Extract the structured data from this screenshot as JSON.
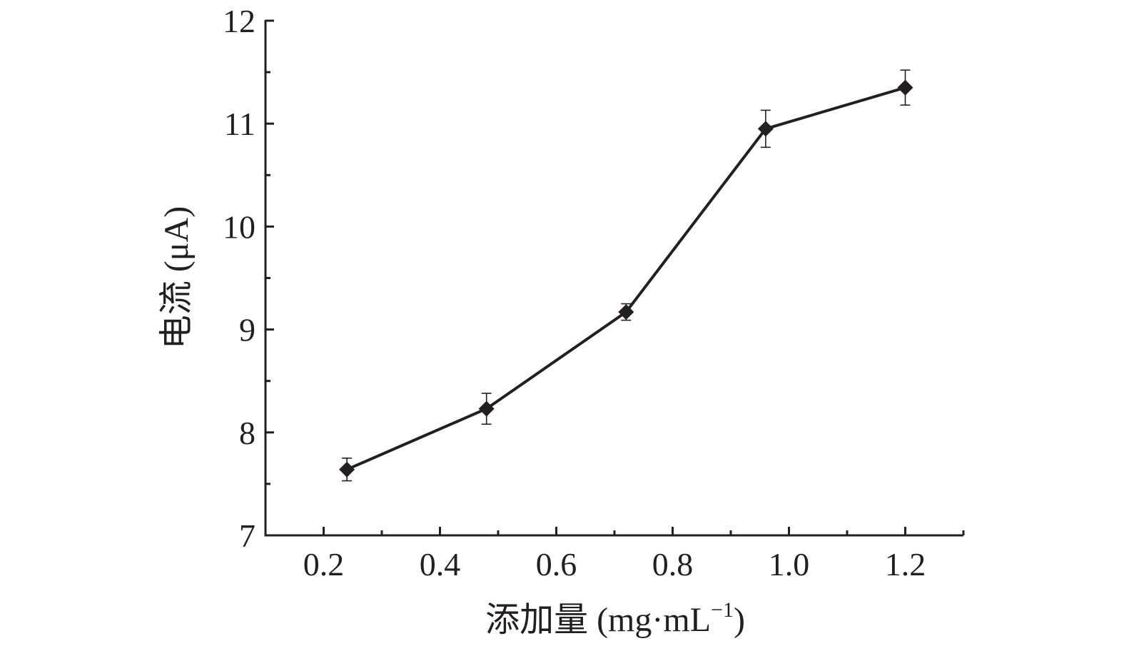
{
  "chart_data": {
    "type": "line",
    "xlabel": {
      "text": "添加量 (mg·mL",
      "superscript": "−1",
      "closing": ")"
    },
    "ylabel": "电流 (μA)",
    "xlim": [
      0.1,
      1.3
    ],
    "ylim": [
      7,
      12
    ],
    "x_ticks": [
      {
        "value": 0.2,
        "label": "0.2"
      },
      {
        "value": 0.4,
        "label": "0.4"
      },
      {
        "value": 0.6,
        "label": "0.6"
      },
      {
        "value": 0.8,
        "label": "0.8"
      },
      {
        "value": 1.0,
        "label": "1.0"
      },
      {
        "value": 1.2,
        "label": "1.2"
      }
    ],
    "x_minor_ticks": [
      0.3,
      0.5,
      0.7,
      0.9,
      1.1,
      1.3
    ],
    "y_ticks": [
      {
        "value": 7,
        "label": "7"
      },
      {
        "value": 8,
        "label": "8"
      },
      {
        "value": 9,
        "label": "9"
      },
      {
        "value": 10,
        "label": "10"
      },
      {
        "value": 11,
        "label": "11"
      },
      {
        "value": 12,
        "label": "12"
      }
    ],
    "y_minor_ticks": [
      7.5,
      8.5,
      9.5,
      10.5,
      11.5
    ],
    "grid": false,
    "series": [
      {
        "marker": "diamond",
        "color": "#231f20",
        "points": [
          {
            "x": 0.24,
            "y": 7.64,
            "err": 0.11
          },
          {
            "x": 0.48,
            "y": 8.23,
            "err": 0.15
          },
          {
            "x": 0.72,
            "y": 9.17,
            "err": 0.08
          },
          {
            "x": 0.96,
            "y": 10.95,
            "err": 0.18
          },
          {
            "x": 1.2,
            "y": 11.35,
            "err": 0.17
          }
        ]
      }
    ]
  }
}
